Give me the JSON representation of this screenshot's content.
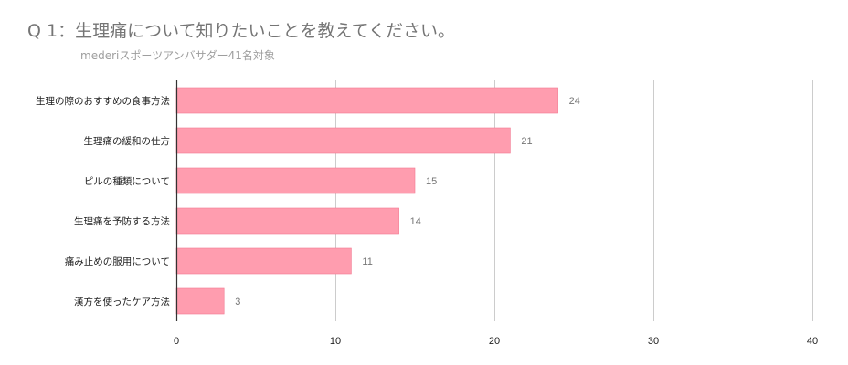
{
  "chart_data": {
    "type": "bar",
    "orientation": "horizontal",
    "title": "Q 1：生理痛について知りたいことを教えてください。",
    "subtitle": "mederiスポーツアンバサダー41名対象",
    "categories": [
      "生理の際のおすすめの食事方法",
      "生理痛の緩和の仕方",
      "ピルの種類について",
      "生理痛を予防する方法",
      "痛み止めの服用について",
      "漢方を使ったケア方法"
    ],
    "values": [
      24,
      21,
      15,
      14,
      11,
      3
    ],
    "xlim": [
      0,
      40
    ],
    "xticks": [
      0,
      10,
      20,
      30,
      40
    ],
    "grid": true,
    "legend": "none",
    "bar_color": "#ff9daf",
    "bar_stroke": "#f27890",
    "grid_color": "#cccccc",
    "axis_color": "#333333"
  }
}
